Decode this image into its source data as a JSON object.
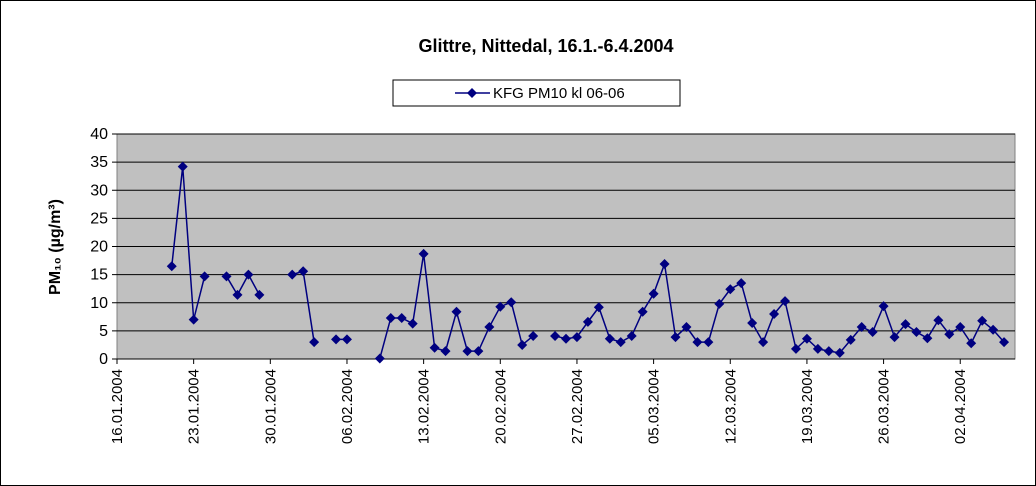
{
  "chart_data": {
    "type": "line",
    "title": "Glittre, Nittedal, 16.1.-6.4.2004",
    "ylabel": "PM₁₀ (µg/m³)",
    "x": [
      "2004-01-21",
      "2004-01-22",
      "2004-01-23",
      "2004-01-24",
      "2004-01-25",
      "2004-01-26",
      "2004-01-27",
      "2004-01-28",
      "2004-01-29",
      "2004-01-30",
      "2004-01-31",
      "2004-02-01",
      "2004-02-02",
      "2004-02-03",
      "2004-02-04",
      "2004-02-05",
      "2004-02-06",
      "2004-02-07",
      "2004-02-08",
      "2004-02-09",
      "2004-02-10",
      "2004-02-11",
      "2004-02-12",
      "2004-02-13",
      "2004-02-14",
      "2004-02-15",
      "2004-02-16",
      "2004-02-17",
      "2004-02-18",
      "2004-02-19",
      "2004-02-20",
      "2004-02-21",
      "2004-02-22",
      "2004-02-23",
      "2004-02-24",
      "2004-02-25",
      "2004-02-26",
      "2004-02-27",
      "2004-02-28",
      "2004-02-29",
      "2004-03-01",
      "2004-03-02",
      "2004-03-03",
      "2004-03-04",
      "2004-03-05",
      "2004-03-06",
      "2004-03-07",
      "2004-03-08",
      "2004-03-09",
      "2004-03-10",
      "2004-03-11",
      "2004-03-12",
      "2004-03-13",
      "2004-03-14",
      "2004-03-15",
      "2004-03-16",
      "2004-03-17",
      "2004-03-18",
      "2004-03-19",
      "2004-03-20",
      "2004-03-21",
      "2004-03-22",
      "2004-03-23",
      "2004-03-24",
      "2004-03-25",
      "2004-03-26",
      "2004-03-27",
      "2004-03-28",
      "2004-03-29",
      "2004-03-30",
      "2004-03-31",
      "2004-04-01",
      "2004-04-02",
      "2004-04-03",
      "2004-04-04",
      "2004-04-05",
      "2004-04-06"
    ],
    "series": [
      {
        "name": "KFG PM10 kl 06-06",
        "color": "#000080",
        "values": [
          16.5,
          34.2,
          7,
          14.7,
          null,
          14.7,
          11.4,
          15,
          11.4,
          null,
          null,
          15,
          15.6,
          3,
          null,
          3.5,
          3.5,
          null,
          null,
          0.1,
          7.3,
          7.3,
          6.3,
          18.7,
          2,
          1.4,
          8.4,
          1.4,
          1.4,
          5.7,
          9.3,
          10.1,
          2.5,
          4.1,
          null,
          4.1,
          3.6,
          3.9,
          6.6,
          9.2,
          3.6,
          3,
          4.1,
          8.4,
          11.6,
          16.9,
          3.9,
          5.7,
          3,
          3,
          9.8,
          12.4,
          13.5,
          6.4,
          3,
          8,
          10.3,
          1.8,
          3.6,
          1.8,
          1.4,
          1.1,
          3.4,
          5.7,
          4.8,
          9.4,
          3.9,
          6.2,
          4.8,
          3.7,
          6.9,
          4.4,
          5.7,
          2.8,
          6.8,
          5.2,
          3
        ]
      }
    ],
    "xlim": [
      "2004-01-16",
      "2004-04-07"
    ],
    "xticks": [
      {
        "value": "2004-01-16",
        "label": "16.01.2004"
      },
      {
        "value": "2004-01-23",
        "label": "23.01.2004"
      },
      {
        "value": "2004-01-30",
        "label": "30.01.2004"
      },
      {
        "value": "2004-02-06",
        "label": "06.02.2004"
      },
      {
        "value": "2004-02-13",
        "label": "13.02.2004"
      },
      {
        "value": "2004-02-20",
        "label": "20.02.2004"
      },
      {
        "value": "2004-02-27",
        "label": "27.02.2004"
      },
      {
        "value": "2004-03-05",
        "label": "05.03.2004"
      },
      {
        "value": "2004-03-12",
        "label": "12.03.2004"
      },
      {
        "value": "2004-03-19",
        "label": "19.03.2004"
      },
      {
        "value": "2004-03-26",
        "label": "26.03.2004"
      },
      {
        "value": "2004-04-02",
        "label": "02.04.2004"
      }
    ],
    "ylim": [
      0,
      40
    ],
    "yticks": [
      0,
      5,
      10,
      15,
      20,
      25,
      30,
      35,
      40
    ],
    "grid": true
  }
}
